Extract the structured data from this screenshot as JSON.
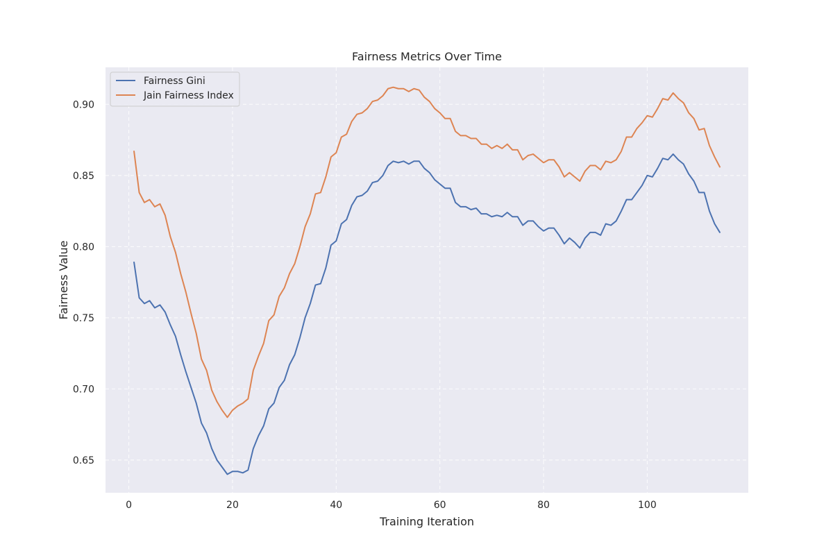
{
  "chart_data": {
    "type": "line",
    "title": "Fairness Metrics Over Time",
    "xlabel": "Training Iteration",
    "ylabel": "Fairness Value",
    "xlim": [
      -4.5,
      119.5
    ],
    "ylim": [
      0.627,
      0.926
    ],
    "xticks": [
      0,
      20,
      40,
      60,
      80,
      100
    ],
    "yticks": [
      0.65,
      0.7,
      0.75,
      0.8,
      0.85,
      0.9
    ],
    "ytick_labels": [
      "0.65",
      "0.70",
      "0.75",
      "0.80",
      "0.85",
      "0.90"
    ],
    "grid": true,
    "grid_style": "dashed",
    "legend_position": "top-left",
    "series": [
      {
        "name": "Fairness Gini",
        "color": "#4c72b0",
        "start_x": 1,
        "values": [
          0.789,
          0.764,
          0.76,
          0.762,
          0.757,
          0.759,
          0.754,
          0.745,
          0.737,
          0.724,
          0.712,
          0.701,
          0.69,
          0.676,
          0.669,
          0.658,
          0.65,
          0.645,
          0.64,
          0.642,
          0.642,
          0.641,
          0.643,
          0.658,
          0.667,
          0.674,
          0.686,
          0.69,
          0.701,
          0.706,
          0.717,
          0.724,
          0.736,
          0.75,
          0.76,
          0.773,
          0.774,
          0.785,
          0.801,
          0.804,
          0.816,
          0.819,
          0.829,
          0.835,
          0.836,
          0.839,
          0.845,
          0.846,
          0.85,
          0.857,
          0.86,
          0.859,
          0.86,
          0.858,
          0.86,
          0.86,
          0.855,
          0.852,
          0.847,
          0.844,
          0.841,
          0.841,
          0.831,
          0.828,
          0.828,
          0.826,
          0.827,
          0.823,
          0.823,
          0.821,
          0.822,
          0.821,
          0.824,
          0.821,
          0.821,
          0.815,
          0.818,
          0.818,
          0.814,
          0.811,
          0.813,
          0.813,
          0.808,
          0.802,
          0.806,
          0.803,
          0.799,
          0.806,
          0.81,
          0.81,
          0.808,
          0.816,
          0.815,
          0.818,
          0.825,
          0.833,
          0.833,
          0.838,
          0.843,
          0.85,
          0.849,
          0.855,
          0.862,
          0.861,
          0.865,
          0.861,
          0.858,
          0.851,
          0.846,
          0.838,
          0.838,
          0.825,
          0.816,
          0.81
        ]
      },
      {
        "name": "Jain Fairness Index",
        "color": "#dd8452",
        "start_x": 1,
        "values": [
          0.867,
          0.838,
          0.831,
          0.833,
          0.828,
          0.83,
          0.822,
          0.807,
          0.796,
          0.781,
          0.768,
          0.753,
          0.739,
          0.721,
          0.713,
          0.699,
          0.691,
          0.685,
          0.68,
          0.685,
          0.688,
          0.69,
          0.693,
          0.713,
          0.723,
          0.732,
          0.748,
          0.752,
          0.765,
          0.771,
          0.781,
          0.788,
          0.8,
          0.814,
          0.823,
          0.837,
          0.838,
          0.849,
          0.863,
          0.866,
          0.877,
          0.879,
          0.888,
          0.893,
          0.894,
          0.897,
          0.902,
          0.903,
          0.906,
          0.911,
          0.912,
          0.911,
          0.911,
          0.909,
          0.911,
          0.91,
          0.905,
          0.902,
          0.897,
          0.894,
          0.89,
          0.89,
          0.881,
          0.878,
          0.878,
          0.876,
          0.876,
          0.872,
          0.872,
          0.869,
          0.871,
          0.869,
          0.872,
          0.868,
          0.868,
          0.861,
          0.864,
          0.865,
          0.862,
          0.859,
          0.861,
          0.861,
          0.856,
          0.849,
          0.852,
          0.849,
          0.846,
          0.853,
          0.857,
          0.857,
          0.854,
          0.86,
          0.859,
          0.861,
          0.867,
          0.877,
          0.877,
          0.883,
          0.887,
          0.892,
          0.891,
          0.897,
          0.904,
          0.903,
          0.908,
          0.904,
          0.901,
          0.894,
          0.89,
          0.882,
          0.883,
          0.871,
          0.863,
          0.856
        ]
      }
    ]
  }
}
